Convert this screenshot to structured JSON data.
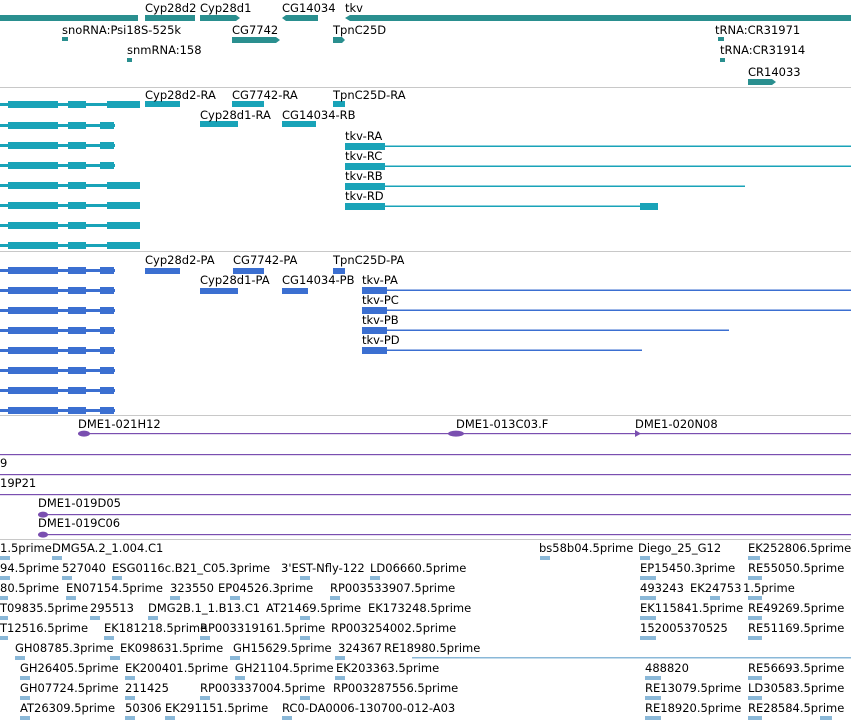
{
  "colors": {
    "gene": "#2a8f8f",
    "transcript": "#19a3b8",
    "protein": "#3b6fd1",
    "clone": "#7a4fb0",
    "est": "#8ab8d8",
    "divider": "#c8c8c8"
  },
  "genes_track": {
    "labels": [
      {
        "text": "Cyp28d2"
      },
      {
        "text": "Cyp28d1"
      },
      {
        "text": "CG14034"
      },
      {
        "text": "tkv"
      },
      {
        "text": "snoRNA:Psi18S-525k"
      },
      {
        "text": "CG7742"
      },
      {
        "text": "TpnC25D"
      },
      {
        "text": "tRNA:CR31971"
      },
      {
        "text": "snmRNA:158"
      },
      {
        "text": "tRNA:CR31914"
      },
      {
        "text": "CR14033"
      }
    ]
  },
  "transcripts_track": {
    "labels": [
      {
        "text": "Cyp28d2-RA"
      },
      {
        "text": "CG7742-RA"
      },
      {
        "text": "TpnC25D-RA"
      },
      {
        "text": "Cyp28d1-RA"
      },
      {
        "text": "CG14034-RB"
      },
      {
        "text": "tkv-RA"
      },
      {
        "text": "tkv-RC"
      },
      {
        "text": "tkv-RB"
      },
      {
        "text": "tkv-RD"
      }
    ]
  },
  "proteins_track": {
    "labels": [
      {
        "text": "Cyp28d2-PA"
      },
      {
        "text": "CG7742-PA"
      },
      {
        "text": "TpnC25D-PA"
      },
      {
        "text": "Cyp28d1-PA"
      },
      {
        "text": "CG14034-PB"
      },
      {
        "text": "tkv-PA"
      },
      {
        "text": "tkv-PC"
      },
      {
        "text": "tkv-PB"
      },
      {
        "text": "tkv-PD"
      }
    ]
  },
  "clones_track": {
    "labels": [
      {
        "text": "DME1-021H12"
      },
      {
        "text": "DME1-013C03.F"
      },
      {
        "text": "DME1-020N08"
      },
      {
        "text": "9"
      },
      {
        "text": "19P21"
      },
      {
        "text": "DME1-019D05"
      },
      {
        "text": "DME1-019C06"
      }
    ]
  },
  "ests_track": {
    "labels": [
      {
        "text": "1.5prime"
      },
      {
        "text": "DMG5A.2_1.004.C1"
      },
      {
        "text": "bs58b04.5prime"
      },
      {
        "text": "Diego_25_G12"
      },
      {
        "text": "EK252806.5prime"
      },
      {
        "text": "94.5prime"
      },
      {
        "text": "527040"
      },
      {
        "text": "ESG0116c.B21_C05.3prime"
      },
      {
        "text": "3'EST-Nfly-122"
      },
      {
        "text": "LD06660.5prime"
      },
      {
        "text": "EP15450.3prime"
      },
      {
        "text": "RE55050.5prime"
      },
      {
        "text": "80.5prime"
      },
      {
        "text": "EN07154.5prime"
      },
      {
        "text": "323550"
      },
      {
        "text": "EP04526.3prime"
      },
      {
        "text": "RP003533907.5prime"
      },
      {
        "text": "493243"
      },
      {
        "text": "EK24753"
      },
      {
        "text": "1.5prime"
      },
      {
        "text": "T09835.5prime"
      },
      {
        "text": "295513"
      },
      {
        "text": "DMG2B.1_1.B13.C1"
      },
      {
        "text": "AT21469.5prime"
      },
      {
        "text": "EK173248.5prime"
      },
      {
        "text": "EK115841.5prime"
      },
      {
        "text": "RE49269.5prime"
      },
      {
        "text": "T12516.5prime"
      },
      {
        "text": "EK181218.5prime"
      },
      {
        "text": "RP003319161.5prime"
      },
      {
        "text": "RP003254002.5prime"
      },
      {
        "text": "152005370525"
      },
      {
        "text": "RE51169.5prime"
      },
      {
        "text": "GH08785.3prime"
      },
      {
        "text": "EK098631.5prime"
      },
      {
        "text": "GH15629.5prime"
      },
      {
        "text": "324367"
      },
      {
        "text": "RE18980.5prime"
      },
      {
        "text": "GH26405.5prime"
      },
      {
        "text": "EK200401.5prime"
      },
      {
        "text": "GH21104.5prime"
      },
      {
        "text": "EK203363.5prime"
      },
      {
        "text": "488820"
      },
      {
        "text": "RE56693.5prime"
      },
      {
        "text": "GH07724.5prime"
      },
      {
        "text": "211425"
      },
      {
        "text": "RP003337004.5prime"
      },
      {
        "text": "RP003287556.5prime"
      },
      {
        "text": "RE13079.5prime"
      },
      {
        "text": "LD30583.5prime"
      },
      {
        "text": "AT26309.5prime"
      },
      {
        "text": "50306"
      },
      {
        "text": "EK291151.5prime"
      },
      {
        "text": "RC0-DA0006-130700-012-A03"
      },
      {
        "text": "RE18920.5prime"
      },
      {
        "text": "RE28584.5prime"
      }
    ]
  }
}
